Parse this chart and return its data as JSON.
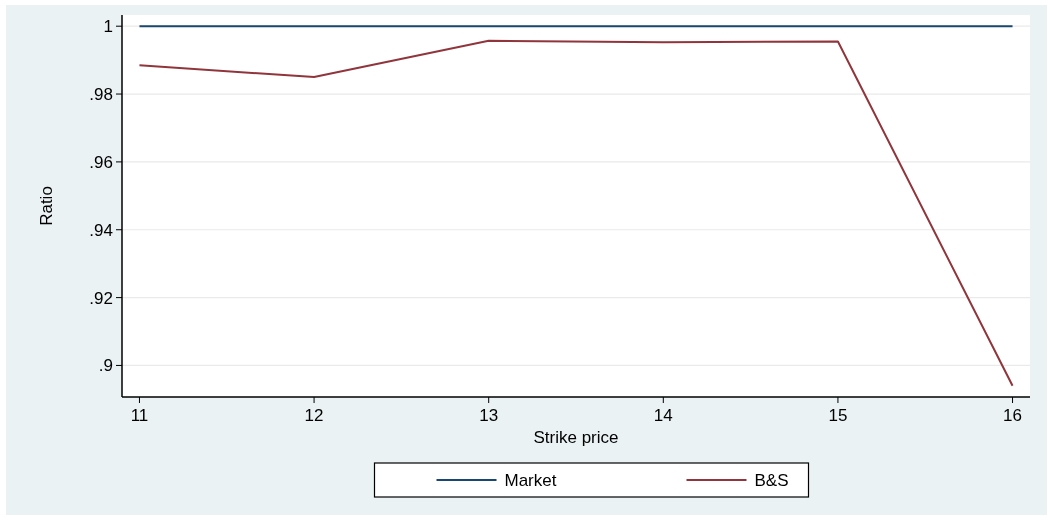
{
  "chart_data": {
    "type": "line",
    "xlabel": "Strike price",
    "ylabel": "Ratio",
    "x": [
      11,
      12,
      13,
      14,
      15,
      16
    ],
    "series": [
      {
        "name": "Market",
        "color": "#1a476f",
        "values": [
          1,
          1,
          1,
          1,
          1,
          1
        ]
      },
      {
        "name": "B&S",
        "color": "#90353b",
        "values": [
          0.9885,
          0.985,
          0.9957,
          0.9953,
          0.9955,
          0.894
        ]
      }
    ],
    "xlim": [
      10.9,
      16.1
    ],
    "xticks": [
      11,
      12,
      13,
      14,
      15,
      16
    ],
    "ylim": [
      0.8907,
      1.0033
    ],
    "yticks": [
      {
        "value": 0.9,
        "label": ".9"
      },
      {
        "value": 0.92,
        "label": ".92"
      },
      {
        "value": 0.94,
        "label": ".94"
      },
      {
        "value": 0.96,
        "label": ".96"
      },
      {
        "value": 0.98,
        "label": ".98"
      },
      1
    ],
    "grid": "y",
    "legend": "bottom",
    "marker": "none",
    "line_style": "solid"
  }
}
